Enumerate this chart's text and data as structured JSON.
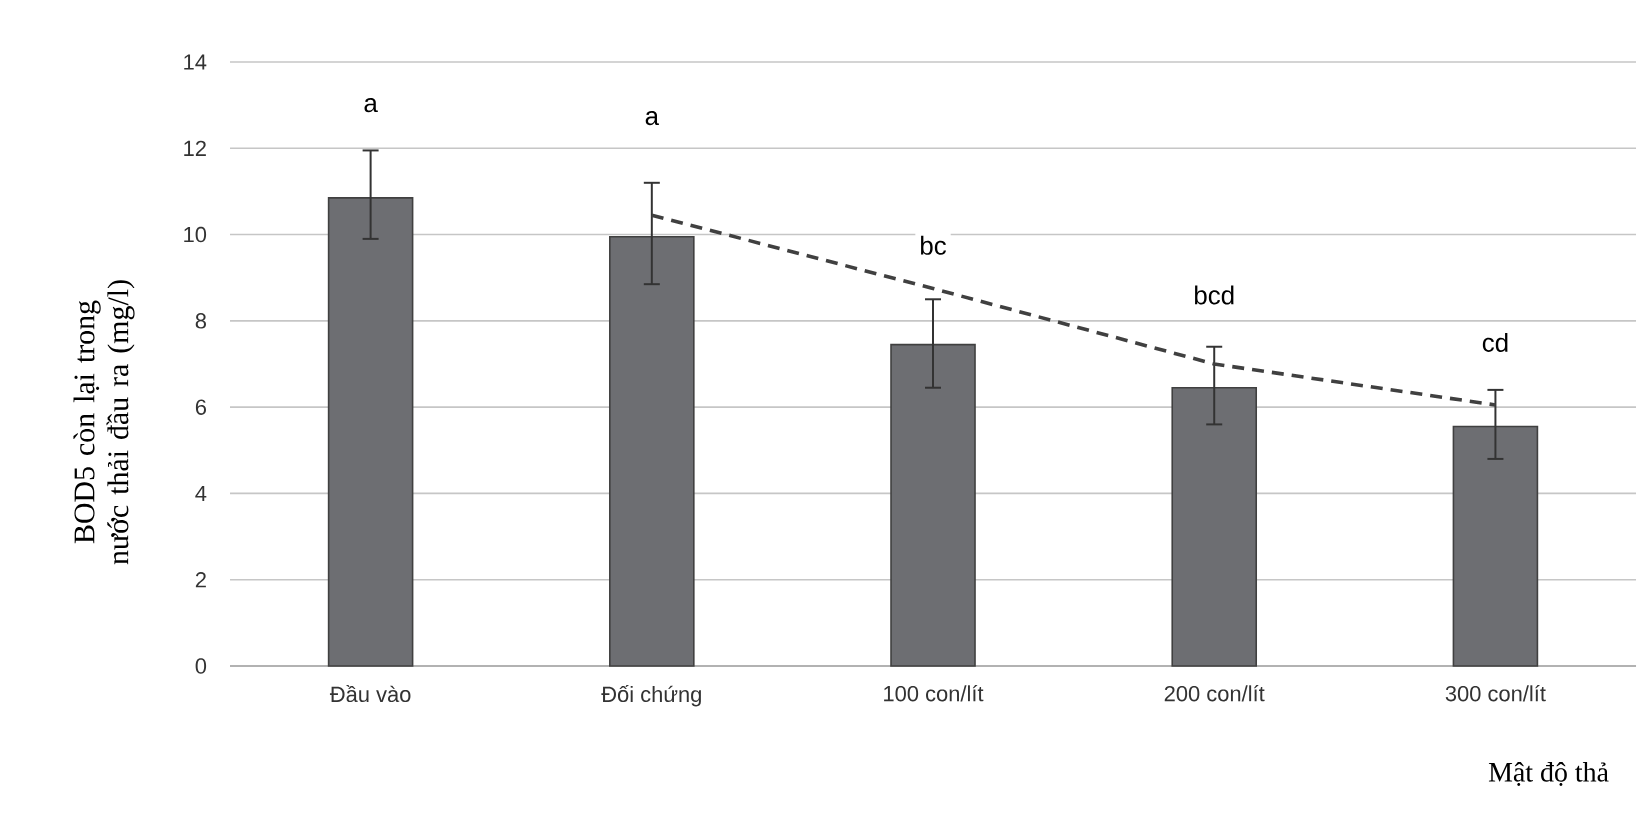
{
  "chart_data": {
    "type": "bar",
    "ylabel": "BOD5 còn lại trong nước thải đầu ra (mg/l)",
    "xlabel": "Mật độ thả",
    "categories": [
      "Đầu vào",
      "Đối chứng",
      "100 con/lít",
      "200 con/lít",
      "300 con/lít"
    ],
    "series": [
      {
        "color": "#6d6e72",
        "values": [
          10.85,
          9.95,
          7.45,
          6.45,
          5.55
        ],
        "errors": [
          [
            9.9,
            11.95
          ],
          [
            8.85,
            11.2
          ],
          [
            6.45,
            8.5
          ],
          [
            5.6,
            7.4
          ],
          [
            4.8,
            6.4
          ]
        ]
      },
      {
        "type": "line",
        "color": "#404040",
        "line_style": "dashed",
        "marker": "none",
        "values": [
          null,
          10.45,
          8.75,
          7.0,
          6.05
        ]
      }
    ],
    "ylim": [
      0,
      14
    ],
    "yticks": [
      0,
      2,
      4,
      6,
      8,
      10,
      12,
      14
    ],
    "grid": "y",
    "annotations": [
      {
        "text": "a",
        "x": "Đầu vào",
        "y": 13.0
      },
      {
        "text": "a",
        "x": "Đối chứng",
        "y": 12.7
      },
      {
        "text": "bc",
        "x": "100 con/lít",
        "y": 9.75
      },
      {
        "text": "bcd",
        "x": "200 con/lít",
        "y": 8.6
      },
      {
        "text": "cd",
        "x": "300 con/lít",
        "y": 7.5
      }
    ]
  }
}
